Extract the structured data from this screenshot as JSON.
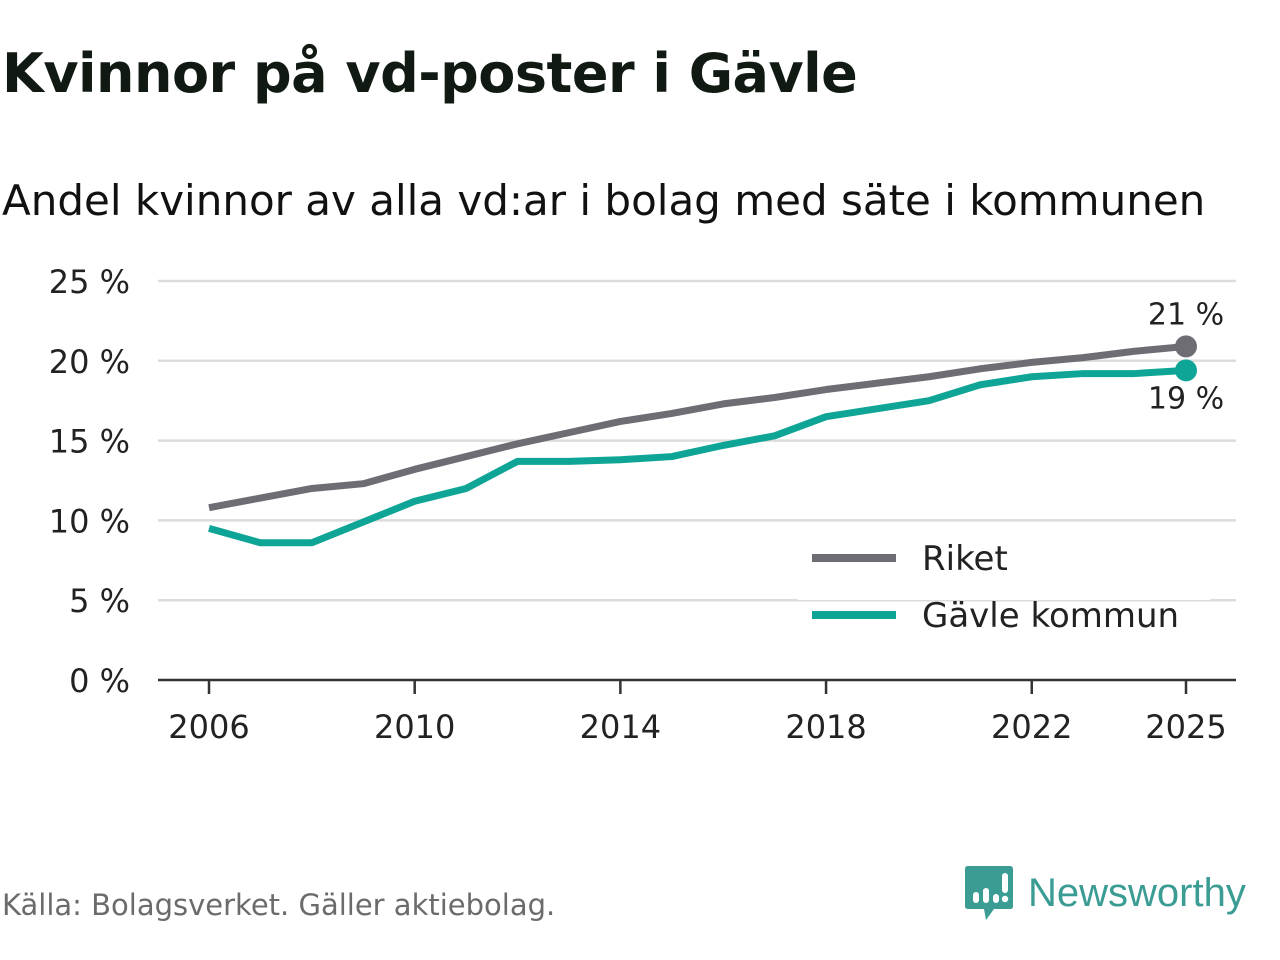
{
  "title": "Kvinnor på vd-poster i Gävle",
  "subtitle": "Andel kvinnor av alla vd:ar i bolag med säte i kommunen",
  "source": "Källa: Bolagsverket. Gäller aktiebolag.",
  "logo": {
    "text": "Newsworthy",
    "icon": "chart-bubble-icon",
    "color": "#3a9c93"
  },
  "chart_data": {
    "type": "line",
    "title": "Kvinnor på vd-poster i Gävle",
    "xlabel": "",
    "ylabel": "",
    "x": [
      2006,
      2007,
      2008,
      2009,
      2010,
      2011,
      2012,
      2013,
      2014,
      2015,
      2016,
      2017,
      2018,
      2019,
      2020,
      2021,
      2022,
      2023,
      2024,
      2025
    ],
    "xticks": [
      2006,
      2010,
      2014,
      2018,
      2022,
      2025
    ],
    "xtick_labels": [
      "2006",
      "2010",
      "2014",
      "2018",
      "2022",
      "2025"
    ],
    "ylim": [
      0,
      25
    ],
    "yticks": [
      0,
      5,
      10,
      15,
      20,
      25
    ],
    "ytick_labels": [
      "0 %",
      "5 %",
      "10 %",
      "15 %",
      "20 %",
      "25 %"
    ],
    "grid": true,
    "legend_position": "bottom-right",
    "series": [
      {
        "name": "Riket",
        "color": "#6e6d73",
        "values": [
          10.8,
          11.4,
          12.0,
          12.3,
          13.2,
          14.0,
          14.8,
          15.5,
          16.2,
          16.7,
          17.3,
          17.7,
          18.2,
          18.6,
          19.0,
          19.5,
          19.9,
          20.2,
          20.6,
          20.9
        ],
        "end_label": "21 %"
      },
      {
        "name": "Gävle kommun",
        "color": "#0ea596",
        "values": [
          9.5,
          8.6,
          8.6,
          9.9,
          11.2,
          12.0,
          13.7,
          13.7,
          13.8,
          14.0,
          14.7,
          15.3,
          16.5,
          17.0,
          17.5,
          18.5,
          19.0,
          19.2,
          19.2,
          19.4
        ],
        "end_label": "19 %"
      }
    ]
  }
}
